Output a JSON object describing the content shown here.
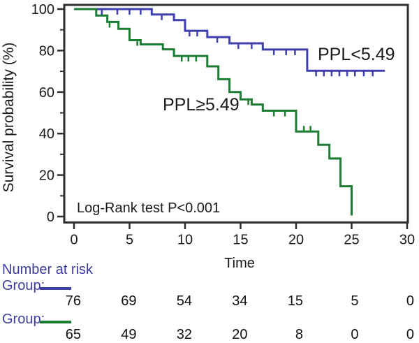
{
  "figure": {
    "annotation": "Log-Rank test P<0.001",
    "curve_labels": {
      "low": "PPL<5.49",
      "high": "PPL≥5.49"
    }
  },
  "chart_data": {
    "type": "line",
    "subtype": "kaplan-meier-step",
    "title": "",
    "xlabel": "Time",
    "ylabel": "Survival probability (%)",
    "xlim": [
      0,
      30
    ],
    "ylim": [
      0,
      100
    ],
    "x_ticks": [
      0,
      5,
      10,
      15,
      20,
      25,
      30
    ],
    "y_ticks": [
      0,
      20,
      40,
      60,
      80,
      100
    ],
    "y_minor_ticks": [
      10,
      30,
      50,
      70,
      90
    ],
    "grid": false,
    "legend_position": "inline-labels",
    "annotation": "Log-Rank test P<0.001",
    "series": [
      {
        "name": "PPL<5.49",
        "color": "#3f3fae",
        "steps": [
          [
            0,
            100
          ],
          [
            7,
            97.4
          ],
          [
            9,
            94.7
          ],
          [
            10,
            89.5
          ],
          [
            12,
            86.5
          ],
          [
            14,
            83.5
          ],
          [
            17,
            80.5
          ],
          [
            21,
            70.3
          ]
        ],
        "end_time": 28,
        "censors": [
          {
            "t": 2.5,
            "dir": "down"
          },
          {
            "t": 3.9,
            "dir": "down"
          },
          {
            "t": 5.0,
            "dir": "down"
          },
          {
            "t": 6.0,
            "dir": "down"
          },
          {
            "t": 7.9,
            "dir": "down"
          },
          {
            "t": 10.4,
            "dir": "down"
          },
          {
            "t": 11.1,
            "dir": "down"
          },
          {
            "t": 12.9,
            "dir": "down"
          },
          {
            "t": 14.8,
            "dir": "down"
          },
          {
            "t": 16.0,
            "dir": "down"
          },
          {
            "t": 18.0,
            "dir": "down"
          },
          {
            "t": 19.1,
            "dir": "down"
          },
          {
            "t": 19.9,
            "dir": "down"
          },
          {
            "t": 21.8,
            "dir": "down"
          },
          {
            "t": 22.5,
            "dir": "down"
          },
          {
            "t": 23.2,
            "dir": "down"
          },
          {
            "t": 23.9,
            "dir": "down"
          },
          {
            "t": 24.6,
            "dir": "down"
          },
          {
            "t": 25.3,
            "dir": "down"
          },
          {
            "t": 26.1,
            "dir": "down"
          },
          {
            "t": 26.9,
            "dir": "down"
          }
        ]
      },
      {
        "name": "PPL≥5.49",
        "color": "#1c7c33",
        "steps": [
          [
            0,
            100
          ],
          [
            2,
            96.9
          ],
          [
            3,
            93.8
          ],
          [
            4,
            90.5
          ],
          [
            5,
            85
          ],
          [
            6,
            83
          ],
          [
            8,
            80.6
          ],
          [
            9,
            77.4
          ],
          [
            12,
            72.4
          ],
          [
            13,
            66.2
          ],
          [
            14,
            60
          ],
          [
            15,
            56.5
          ],
          [
            16,
            54
          ],
          [
            17,
            51
          ],
          [
            20,
            41
          ],
          [
            22,
            34.6
          ],
          [
            23,
            28
          ],
          [
            24,
            14.6
          ],
          [
            25,
            0.5
          ]
        ],
        "end_time": 25,
        "censors": [
          {
            "t": 3.2,
            "dir": "down"
          },
          {
            "t": 5.7,
            "dir": "down"
          },
          {
            "t": 9.7,
            "dir": "down"
          },
          {
            "t": 10.3,
            "dir": "down"
          },
          {
            "t": 11.0,
            "dir": "down"
          },
          {
            "t": 15.7,
            "dir": "down"
          },
          {
            "t": 18.0,
            "dir": "down"
          },
          {
            "t": 19.0,
            "dir": "down"
          },
          {
            "t": 20.7,
            "dir": "up"
          },
          {
            "t": 21.3,
            "dir": "up"
          }
        ]
      }
    ]
  },
  "risk_table": {
    "title": "Number at risk",
    "label_color": "#3c3c9c",
    "times": [
      0,
      5,
      10,
      15,
      20,
      25,
      30
    ],
    "rows": [
      {
        "label": "Group:",
        "color": "#3f3fae",
        "counts": [
          76,
          69,
          54,
          34,
          15,
          5,
          0
        ]
      },
      {
        "label": "Group:",
        "color": "#1c7c33",
        "counts": [
          65,
          49,
          32,
          20,
          8,
          0,
          0
        ]
      }
    ]
  }
}
